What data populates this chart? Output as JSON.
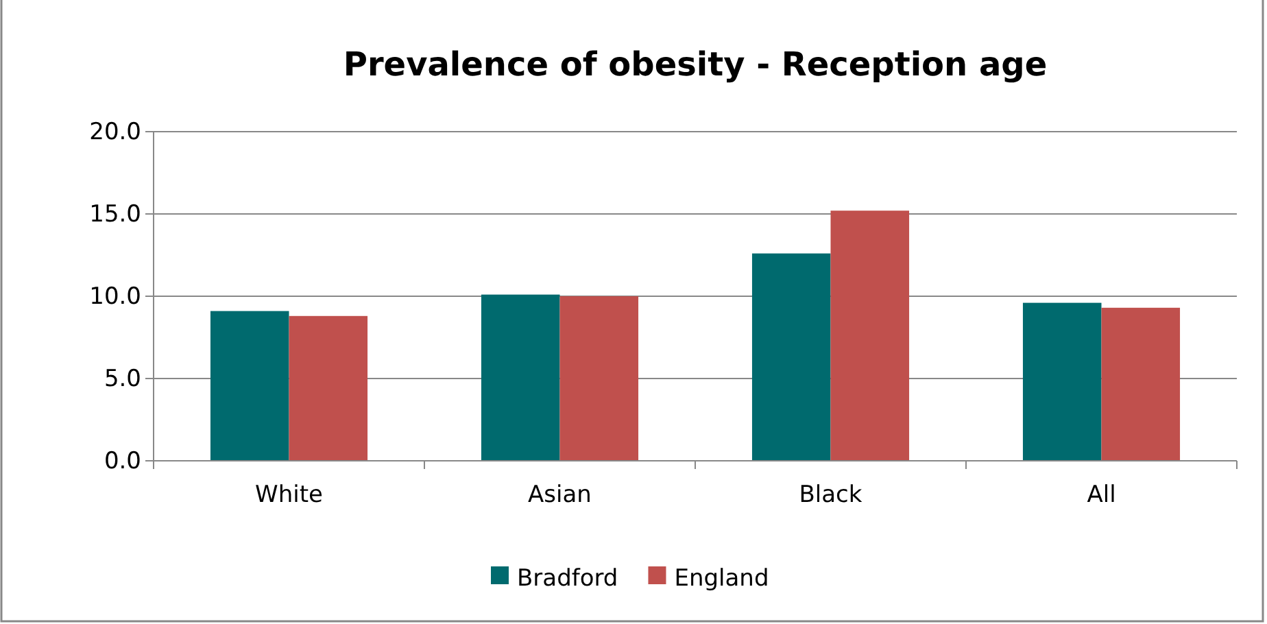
{
  "chart_data": {
    "type": "bar",
    "title": "Prevalence of obesity - Reception age",
    "categories": [
      "White",
      "Asian",
      "Black",
      "All"
    ],
    "series": [
      {
        "name": "Bradford",
        "color": "#006a6e",
        "values": [
          9.1,
          10.1,
          12.6,
          9.6
        ]
      },
      {
        "name": "England",
        "color": "#c0504d",
        "values": [
          8.8,
          10.0,
          15.2,
          9.3
        ]
      }
    ],
    "ylim": [
      0,
      20
    ],
    "yticks": [
      {
        "value": 0,
        "label": "0.0"
      },
      {
        "value": 5,
        "label": "5.0"
      },
      {
        "value": 10,
        "label": "10.0"
      },
      {
        "value": 15,
        "label": "15.0"
      },
      {
        "value": 20,
        "label": "20.0"
      }
    ],
    "grid": "y",
    "legend": "bottom"
  }
}
